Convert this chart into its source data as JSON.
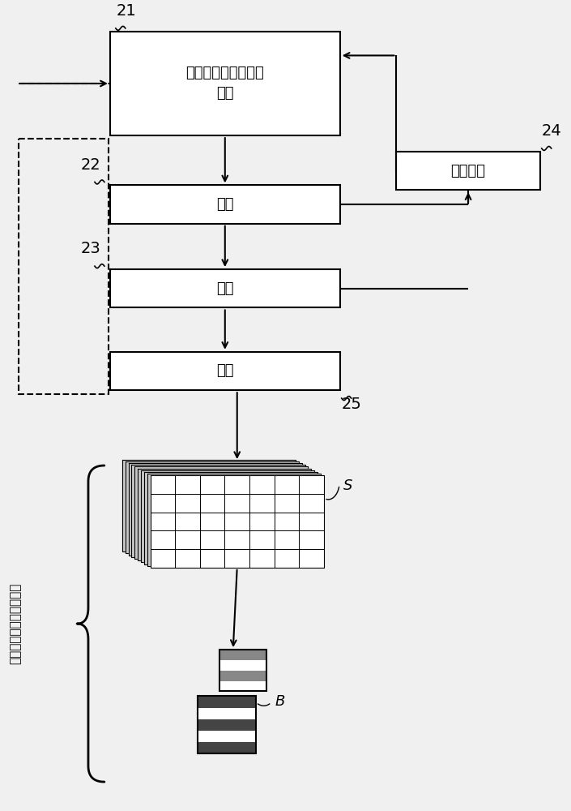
{
  "bg_color": "#f0f0f0",
  "box21_text": "单独设计特征集合的\n设计",
  "box22_text": "打样",
  "box23_text": "制板",
  "box24_text": "测试印刷",
  "box25_text": "生产",
  "label21": "21",
  "label22": "22",
  "label23": "23",
  "label24": "24",
  "label25": "25",
  "label_S": "S",
  "label_B": "B",
  "side_text": "具有合成设计的印刷结果",
  "box_color": "#ffffff",
  "box_edge_color": "#000000"
}
